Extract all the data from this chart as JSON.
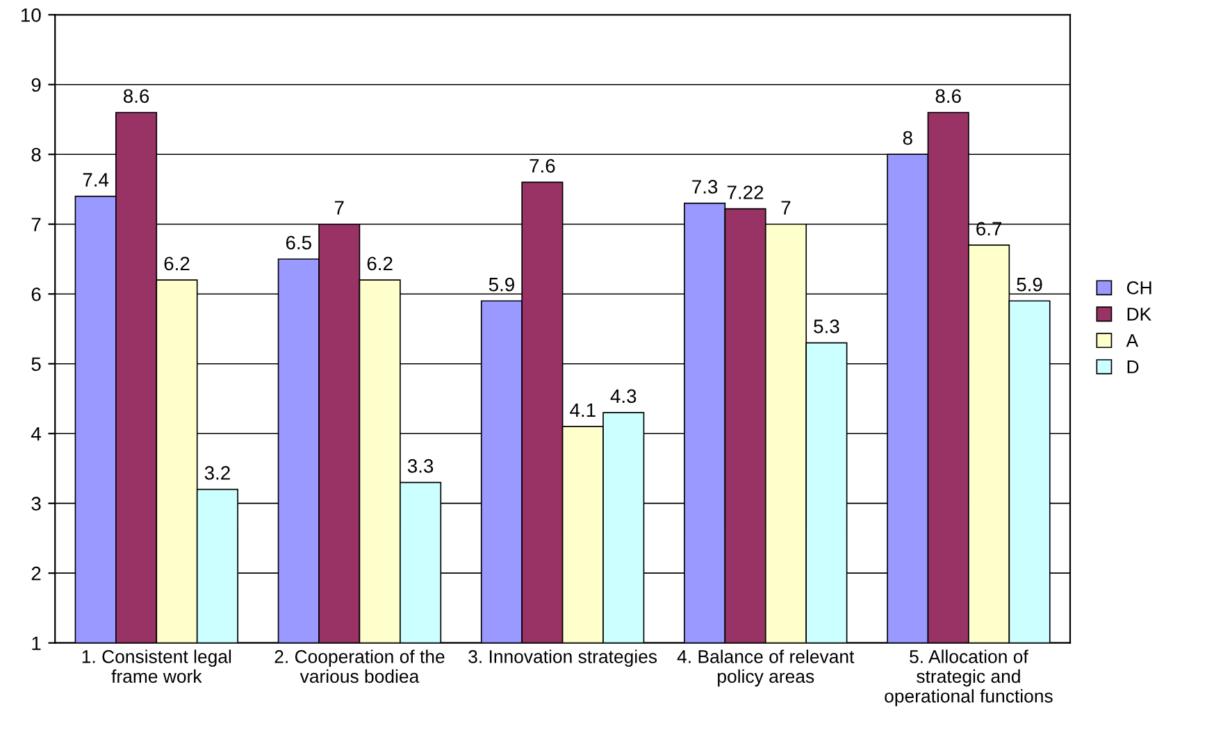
{
  "chart_data": {
    "type": "bar",
    "categories": [
      "1. Consistent legal\nframe work",
      "2. Cooperation of the\nvarious bodiea",
      "3. Innovation strategies",
      "4. Balance of relevant\npolicy areas",
      "5. Allocation of\nstrategic and\noperational functions"
    ],
    "series": [
      {
        "name": "CH",
        "color": "#9999ff",
        "values": [
          7.4,
          6.5,
          5.9,
          7.3,
          8
        ]
      },
      {
        "name": "DK",
        "color": "#993366",
        "values": [
          8.6,
          7,
          7.6,
          7.22,
          8.6
        ]
      },
      {
        "name": "A",
        "color": "#ffffcc",
        "values": [
          6.2,
          6.2,
          4.1,
          7,
          6.7
        ]
      },
      {
        "name": "D",
        "color": "#ccffff",
        "values": [
          3.2,
          3.3,
          4.3,
          5.3,
          5.9
        ]
      }
    ],
    "ylim": [
      1,
      10
    ],
    "yticks": [
      1,
      2,
      3,
      4,
      5,
      6,
      7,
      8,
      9,
      10
    ],
    "grid": "y",
    "legend": "right",
    "data_labels": true
  }
}
